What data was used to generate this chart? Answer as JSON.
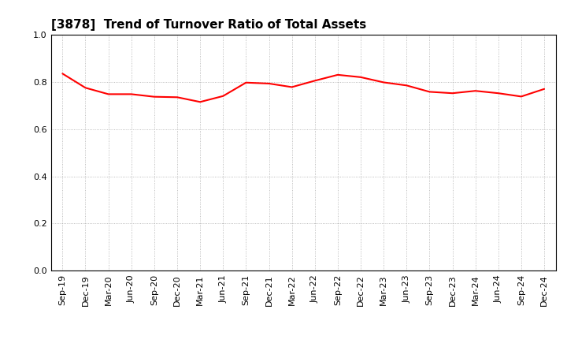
{
  "title": "[3878]  Trend of Turnover Ratio of Total Assets",
  "x_labels": [
    "Sep-19",
    "Dec-19",
    "Mar-20",
    "Jun-20",
    "Sep-20",
    "Dec-20",
    "Mar-21",
    "Jun-21",
    "Sep-21",
    "Dec-21",
    "Mar-22",
    "Jun-22",
    "Sep-22",
    "Dec-22",
    "Mar-23",
    "Jun-23",
    "Sep-23",
    "Dec-23",
    "Mar-24",
    "Jun-24",
    "Sep-24",
    "Dec-24"
  ],
  "y_values": [
    0.835,
    0.775,
    0.748,
    0.748,
    0.737,
    0.735,
    0.715,
    0.74,
    0.797,
    0.793,
    0.778,
    0.805,
    0.83,
    0.82,
    0.798,
    0.785,
    0.758,
    0.752,
    0.762,
    0.752,
    0.738,
    0.77
  ],
  "ylim": [
    0.0,
    1.0
  ],
  "yticks": [
    0.0,
    0.2,
    0.4,
    0.6,
    0.8,
    1.0
  ],
  "line_color": "#FF0000",
  "line_width": 1.5,
  "background_color": "#FFFFFF",
  "grid_color": "#AAAAAA",
  "title_fontsize": 11,
  "tick_fontsize": 8
}
